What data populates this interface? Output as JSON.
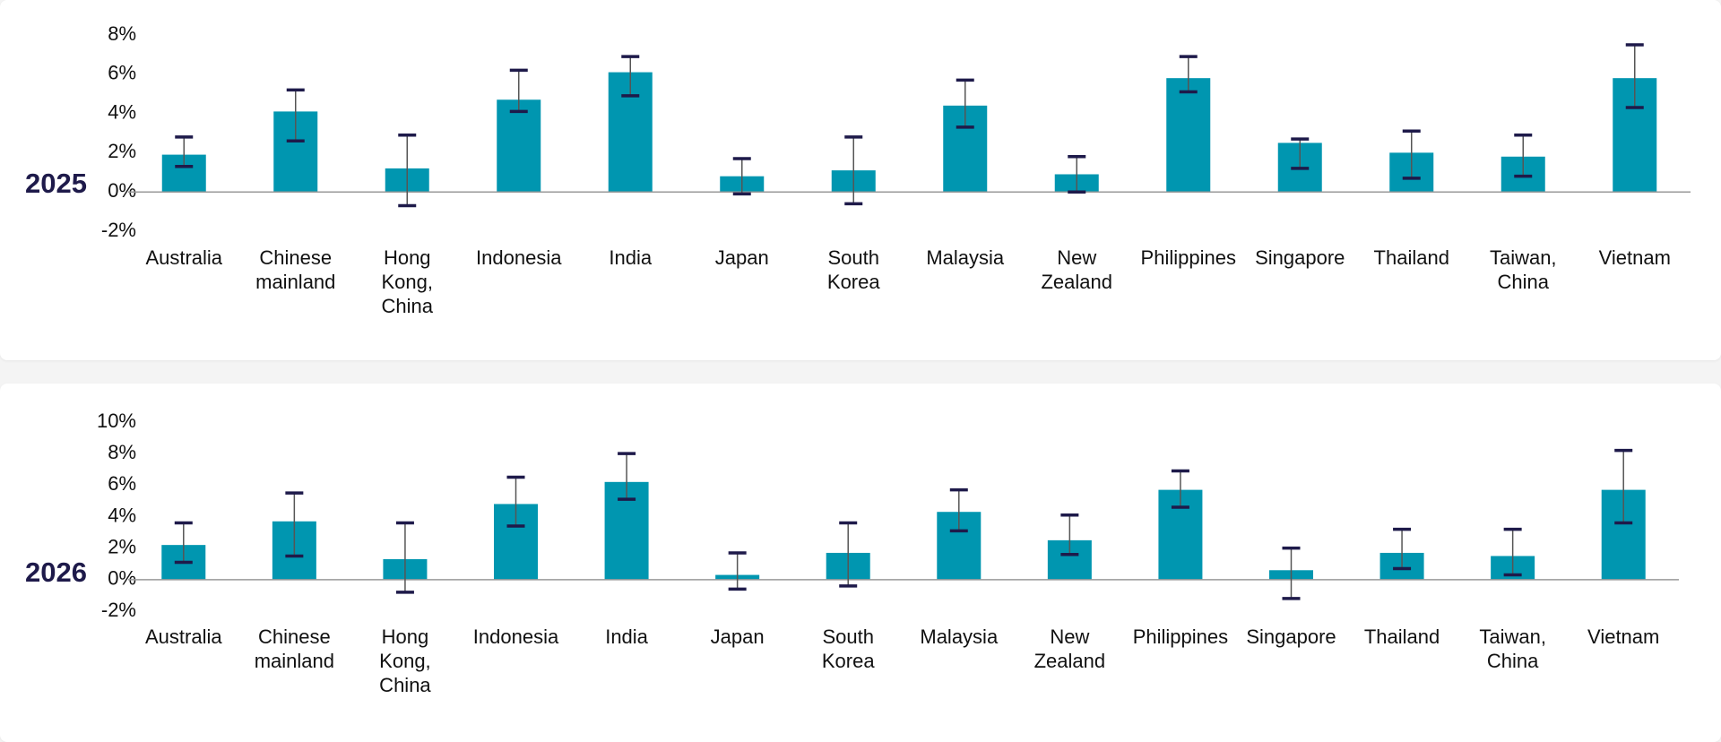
{
  "chart_data": [
    {
      "type": "bar",
      "title": "2025",
      "categories": [
        "Australia",
        "Chinese mainland",
        "Hong Kong, China",
        "Indonesia",
        "India",
        "Japan",
        "South Korea",
        "Malaysia",
        "New Zealand",
        "Philippines",
        "Singapore",
        "Thailand",
        "Taiwan, China",
        "Vietnam"
      ],
      "values": [
        1.9,
        4.1,
        1.2,
        4.7,
        6.1,
        0.8,
        1.1,
        4.4,
        0.9,
        5.8,
        2.5,
        2.0,
        1.8,
        5.8
      ],
      "low": [
        1.3,
        2.6,
        -0.7,
        4.1,
        4.9,
        -0.1,
        -0.6,
        3.3,
        0,
        5.1,
        1.2,
        0.7,
        0.8,
        4.3
      ],
      "high": [
        2.8,
        5.2,
        2.9,
        6.2,
        6.9,
        1.7,
        2.8,
        5.7,
        1.8,
        6.9,
        2.7,
        3.1,
        2.9,
        7.5
      ],
      "color": "#0096b0",
      "ylim": [
        -2,
        8
      ],
      "yticks": [
        {
          "value": -2,
          "label": "-2%"
        },
        {
          "value": 0,
          "label": "0%"
        },
        {
          "value": 2,
          "label": "2%"
        },
        {
          "value": 4,
          "label": "4%"
        },
        {
          "value": 6,
          "label": "6%"
        },
        {
          "value": 8,
          "label": "8%"
        }
      ]
    },
    {
      "type": "bar",
      "title": "2026",
      "categories": [
        "Australia",
        "Chinese mainland",
        "Hong Kong, China",
        "Indonesia",
        "India",
        "Japan",
        "South Korea",
        "Malaysia",
        "New Zealand",
        "Philippines",
        "Singapore",
        "Thailand",
        "Taiwan, China",
        "Vietnam"
      ],
      "values": [
        2.2,
        3.7,
        1.3,
        4.8,
        6.2,
        0.3,
        1.7,
        4.3,
        2.5,
        5.7,
        0.6,
        1.7,
        1.5,
        5.7
      ],
      "low": [
        1.1,
        1.5,
        -0.8,
        3.4,
        5.1,
        -0.6,
        -0.4,
        3.1,
        1.6,
        4.6,
        -1.2,
        0.7,
        0.3,
        3.6
      ],
      "high": [
        3.6,
        5.5,
        3.6,
        6.5,
        8.0,
        1.7,
        3.6,
        5.7,
        4.1,
        6.9,
        2.0,
        3.2,
        3.2,
        8.2
      ],
      "color": "#0096b0",
      "ylim": [
        -2,
        10
      ],
      "yticks": [
        {
          "value": -2,
          "label": "-2%"
        },
        {
          "value": 0,
          "label": "0%"
        },
        {
          "value": 2,
          "label": "2%"
        },
        {
          "value": 4,
          "label": "4%"
        },
        {
          "value": 6,
          "label": "6%"
        },
        {
          "value": 8,
          "label": "8%"
        },
        {
          "value": 10,
          "label": "10%"
        }
      ]
    }
  ]
}
